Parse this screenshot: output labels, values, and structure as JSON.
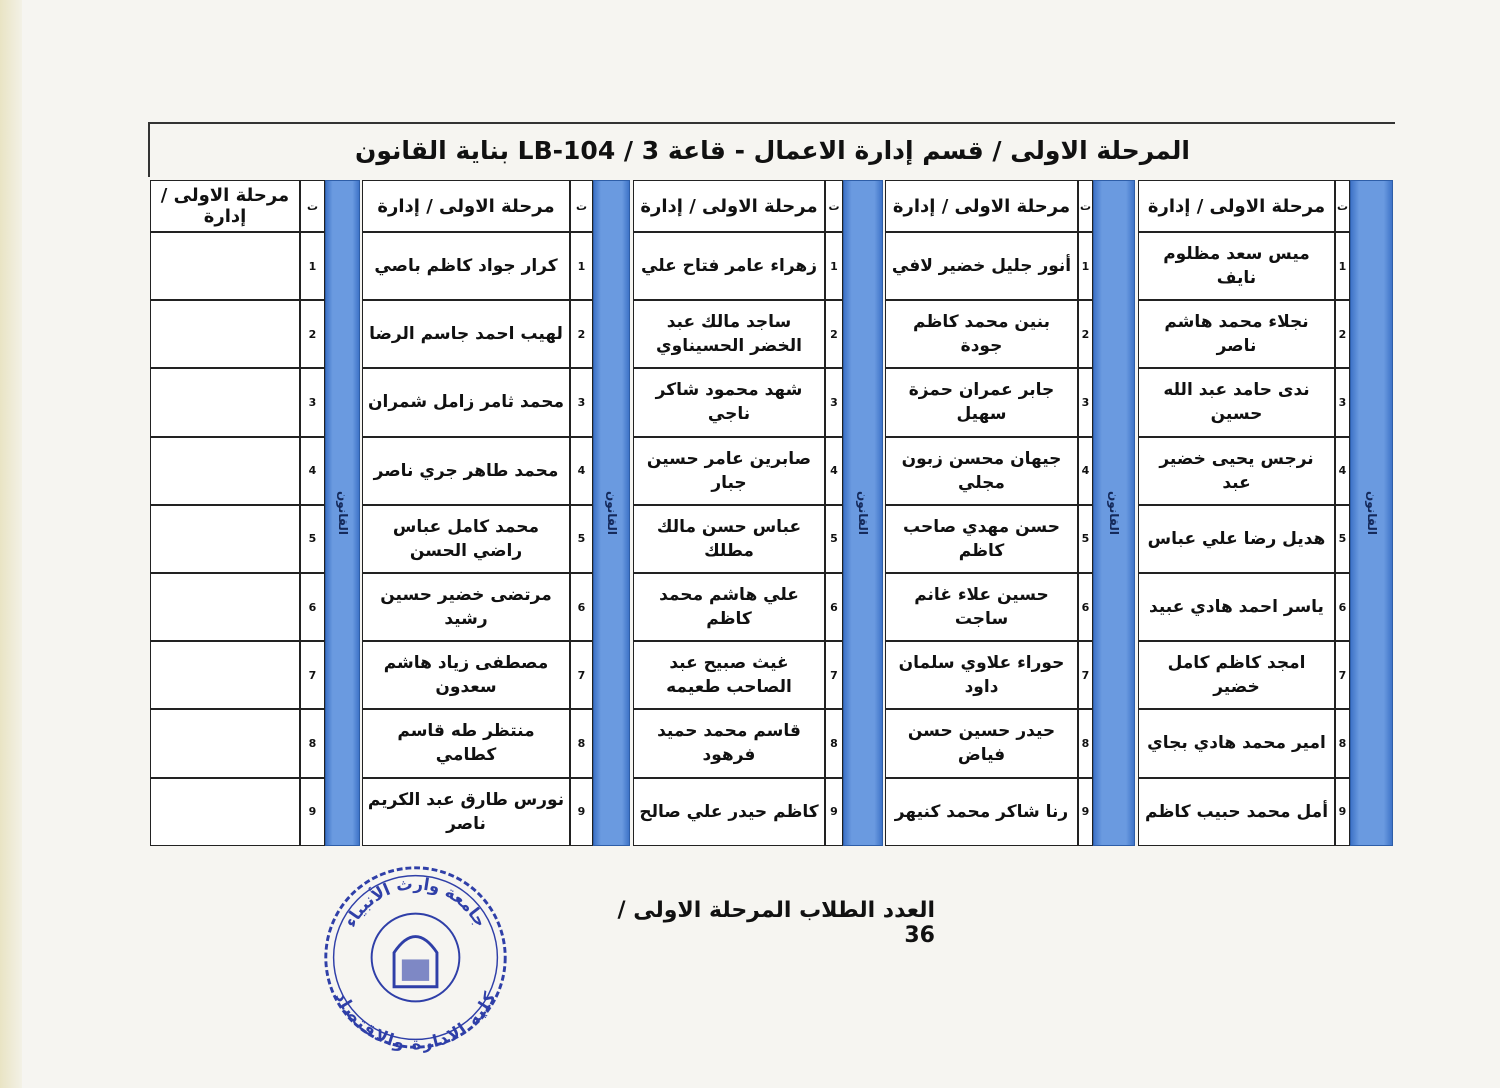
{
  "title": "المرحلة الاولى  /  قسم إدارة الاعمال - قاعة 3 / LB-104 بناية القانون",
  "column_headers": {
    "serial": "ت",
    "group_label": "القانون"
  },
  "groups": [
    {
      "header": "مرحلة الاولى / إدارة",
      "rows": [
        {
          "n": "1",
          "name": "ميس سعد مظلوم نايف"
        },
        {
          "n": "2",
          "name": "نجلاء محمد هاشم ناصر"
        },
        {
          "n": "3",
          "name": "ندى حامد عبد الله حسين"
        },
        {
          "n": "4",
          "name": "نرجس يحيى خضير عبد"
        },
        {
          "n": "5",
          "name": "هديل رضا علي عباس"
        },
        {
          "n": "6",
          "name": "ياسر احمد هادي عبيد"
        },
        {
          "n": "7",
          "name": "امجد كاظم كامل خضير"
        },
        {
          "n": "8",
          "name": "امير محمد هادي بجاي"
        },
        {
          "n": "9",
          "name": "أمل محمد حبيب كاظم"
        }
      ]
    },
    {
      "header": "مرحلة الاولى / إدارة",
      "rows": [
        {
          "n": "1",
          "name": "أنور جليل خضير لافي"
        },
        {
          "n": "2",
          "name": "بنين محمد كاظم جودة"
        },
        {
          "n": "3",
          "name": "جابر عمران حمزة سهيل"
        },
        {
          "n": "4",
          "name": "جيهان محسن زبون مجلي"
        },
        {
          "n": "5",
          "name": "حسن مهدي صاحب كاظم"
        },
        {
          "n": "6",
          "name": "حسين علاء غانم ساجت"
        },
        {
          "n": "7",
          "name": "حوراء علاوي سلمان داود"
        },
        {
          "n": "8",
          "name": "حيدر حسين حسن فياض"
        },
        {
          "n": "9",
          "name": "رنا شاكر محمد كنيهر"
        }
      ]
    },
    {
      "header": "مرحلة الاولى / إدارة",
      "rows": [
        {
          "n": "1",
          "name": "زهراء عامر فتاح علي"
        },
        {
          "n": "2",
          "name": "ساجد مالك عبد الخضر الحسيناوي"
        },
        {
          "n": "3",
          "name": "شهد محمود شاكر ناجي"
        },
        {
          "n": "4",
          "name": "صابرين عامر حسين جبار"
        },
        {
          "n": "5",
          "name": "عباس حسن مالك مطلك"
        },
        {
          "n": "6",
          "name": "علي هاشم محمد كاظم"
        },
        {
          "n": "7",
          "name": "غيث صبيح عبد الصاحب طعيمه"
        },
        {
          "n": "8",
          "name": "قاسم محمد حميد فرهود"
        },
        {
          "n": "9",
          "name": "كاظم حيدر علي صالح"
        }
      ]
    },
    {
      "header": "مرحلة الاولى / إدارة",
      "rows": [
        {
          "n": "1",
          "name": "كرار جواد كاظم باصي"
        },
        {
          "n": "2",
          "name": "لهيب احمد جاسم الرضا"
        },
        {
          "n": "3",
          "name": "محمد ثامر زامل شمران"
        },
        {
          "n": "4",
          "name": "محمد طاهر جري ناصر"
        },
        {
          "n": "5",
          "name": "محمد كامل عباس راضي الحسن"
        },
        {
          "n": "6",
          "name": "مرتضى خضير حسين رشيد"
        },
        {
          "n": "7",
          "name": "مصطفى زياد هاشم سعدون"
        },
        {
          "n": "8",
          "name": "منتظر طه قاسم كطامي"
        },
        {
          "n": "9",
          "name": "نورس طارق عبد الكريم ناصر"
        }
      ]
    },
    {
      "header": "مرحلة الاولى / إدارة",
      "rows": [
        {
          "n": "1",
          "name": ""
        },
        {
          "n": "2",
          "name": ""
        },
        {
          "n": "3",
          "name": ""
        },
        {
          "n": "4",
          "name": ""
        },
        {
          "n": "5",
          "name": ""
        },
        {
          "n": "6",
          "name": ""
        },
        {
          "n": "7",
          "name": ""
        },
        {
          "n": "8",
          "name": ""
        },
        {
          "n": "9",
          "name": ""
        }
      ]
    }
  ],
  "footer": "العدد الطلاب المرحلة الاولى / 36",
  "stamp": {
    "top_text": "جامعة وارث الأنبياء",
    "bottom_text": "كلية الادارة والاقتصاد",
    "color": "#2f3fa8"
  },
  "colors": {
    "header_band": "#6a9ae0",
    "stamp": "#2f3fa8"
  }
}
